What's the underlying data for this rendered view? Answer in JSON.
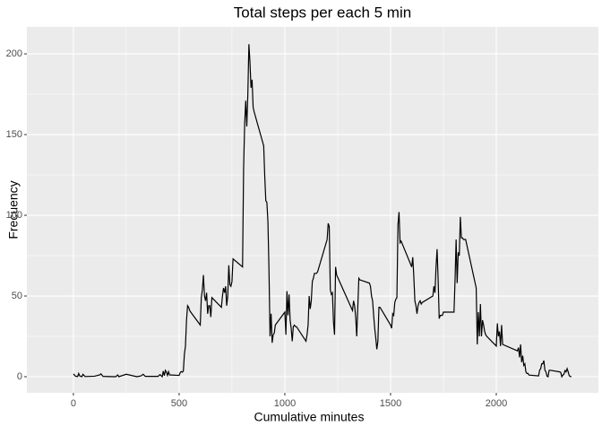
{
  "chart_data": {
    "type": "line",
    "title": "Total steps per each 5 min",
    "x_label": "Cumulative minutes",
    "y_label": "Frecuency",
    "x": [
      0,
      10,
      20,
      25,
      30,
      40,
      45,
      55,
      100,
      125,
      130,
      140,
      200,
      210,
      215,
      250,
      300,
      320,
      330,
      340,
      400,
      410,
      420,
      425,
      430,
      435,
      440,
      445,
      450,
      455,
      500,
      505,
      510,
      515,
      520,
      525,
      530,
      535,
      540,
      545,
      550,
      555,
      600,
      605,
      610,
      615,
      620,
      625,
      630,
      635,
      640,
      645,
      650,
      655,
      700,
      705,
      710,
      715,
      720,
      725,
      730,
      735,
      740,
      745,
      750,
      755,
      800,
      805,
      810,
      815,
      820,
      825,
      830,
      835,
      840,
      845,
      850,
      855,
      900,
      905,
      910,
      915,
      920,
      925,
      930,
      935,
      940,
      945,
      950,
      955,
      1000,
      1005,
      1010,
      1015,
      1020,
      1025,
      1030,
      1035,
      1040,
      1045,
      1050,
      1055,
      1100,
      1105,
      1110,
      1115,
      1120,
      1125,
      1130,
      1135,
      1140,
      1150,
      1155,
      1200,
      1205,
      1210,
      1215,
      1220,
      1225,
      1230,
      1235,
      1240,
      1245,
      1320,
      1325,
      1330,
      1335,
      1340,
      1345,
      1350,
      1355,
      1400,
      1405,
      1410,
      1415,
      1420,
      1425,
      1430,
      1435,
      1440,
      1445,
      1450,
      1500,
      1505,
      1510,
      1515,
      1520,
      1525,
      1530,
      1535,
      1540,
      1545,
      1550,
      1600,
      1605,
      1610,
      1615,
      1620,
      1625,
      1630,
      1635,
      1640,
      1645,
      1650,
      1700,
      1705,
      1710,
      1715,
      1720,
      1725,
      1730,
      1735,
      1740,
      1745,
      1750,
      1800,
      1805,
      1810,
      1815,
      1820,
      1825,
      1830,
      1835,
      1840,
      1845,
      1850,
      1855,
      1900,
      1905,
      1910,
      1915,
      1920,
      1925,
      1930,
      1935,
      1940,
      1945,
      1950,
      1955,
      2000,
      2005,
      2010,
      2015,
      2020,
      2025,
      2030,
      2100,
      2105,
      2110,
      2115,
      2120,
      2125,
      2130,
      2135,
      2140,
      2145,
      2150,
      2155,
      2200,
      2205,
      2210,
      2215,
      2220,
      2225,
      2230,
      2235,
      2240,
      2245,
      2250,
      2255,
      2300,
      2305,
      2310,
      2315,
      2320,
      2325,
      2330,
      2335,
      2340,
      2345,
      2350,
      2355
    ],
    "values": [
      1.7,
      0.3,
      0.1,
      2,
      0.5,
      0,
      1.5,
      0.1,
      0.3,
      1.1,
      1.8,
      0.2,
      0,
      1.1,
      0,
      1.5,
      0,
      0.5,
      1.5,
      0.2,
      0.2,
      1.3,
      0,
      3.5,
      0.6,
      3.9,
      2.9,
      0.8,
      3.1,
      1.1,
      0.8,
      2.5,
      3.2,
      2.8,
      3.5,
      14,
      19,
      35,
      44,
      43,
      41,
      40,
      32,
      49,
      54,
      63,
      50,
      47,
      52,
      39,
      44,
      44,
      37,
      49,
      43,
      50,
      55,
      52,
      56,
      44,
      50,
      69,
      57,
      56,
      59,
      73,
      68,
      129,
      157,
      171,
      155,
      175,
      206,
      195,
      179,
      184,
      167,
      164,
      143,
      124,
      109,
      108,
      96,
      66,
      25,
      39,
      21,
      26,
      27,
      32,
      40,
      26,
      53,
      38,
      51,
      35,
      30,
      22,
      31,
      32,
      31,
      31,
      22,
      26,
      32,
      50,
      42,
      47,
      59,
      61,
      64,
      64,
      65,
      85,
      95,
      93,
      54,
      51,
      52,
      34,
      26,
      68,
      63,
      41,
      47,
      44,
      37,
      25,
      43,
      61,
      60,
      58,
      56,
      50,
      47,
      38,
      30,
      24,
      17,
      22,
      43,
      43,
      32,
      30,
      39,
      38,
      46,
      48,
      49,
      94,
      102,
      83,
      84,
      68,
      74,
      62,
      47,
      44,
      39,
      44,
      46,
      47,
      45,
      46,
      50,
      56,
      52,
      68,
      79,
      60,
      36,
      38,
      38,
      38,
      40,
      40,
      60,
      85,
      58,
      77,
      75,
      99,
      86,
      86,
      85,
      85,
      85,
      58,
      55,
      20,
      40,
      25,
      45,
      25,
      35,
      32,
      28,
      26,
      25,
      19,
      33,
      25,
      28,
      19,
      32,
      20,
      16,
      18,
      12,
      20,
      9,
      13,
      7,
      8,
      3,
      2,
      2,
      1,
      0.5,
      4,
      5,
      8,
      8,
      10,
      4,
      3,
      0.3,
      0,
      4,
      4,
      3,
      2.6,
      0,
      1,
      1.6,
      3.8,
      3,
      5,
      3,
      0.6,
      0.2,
      0
    ],
    "color": "#000000",
    "xlim": [
      -220,
      2483
    ],
    "ylim": [
      -10,
      216.7
    ],
    "xticks": [
      0,
      500,
      1000,
      1500,
      2000
    ],
    "yticks": [
      0,
      50,
      100,
      150,
      200
    ],
    "grid": true
  }
}
